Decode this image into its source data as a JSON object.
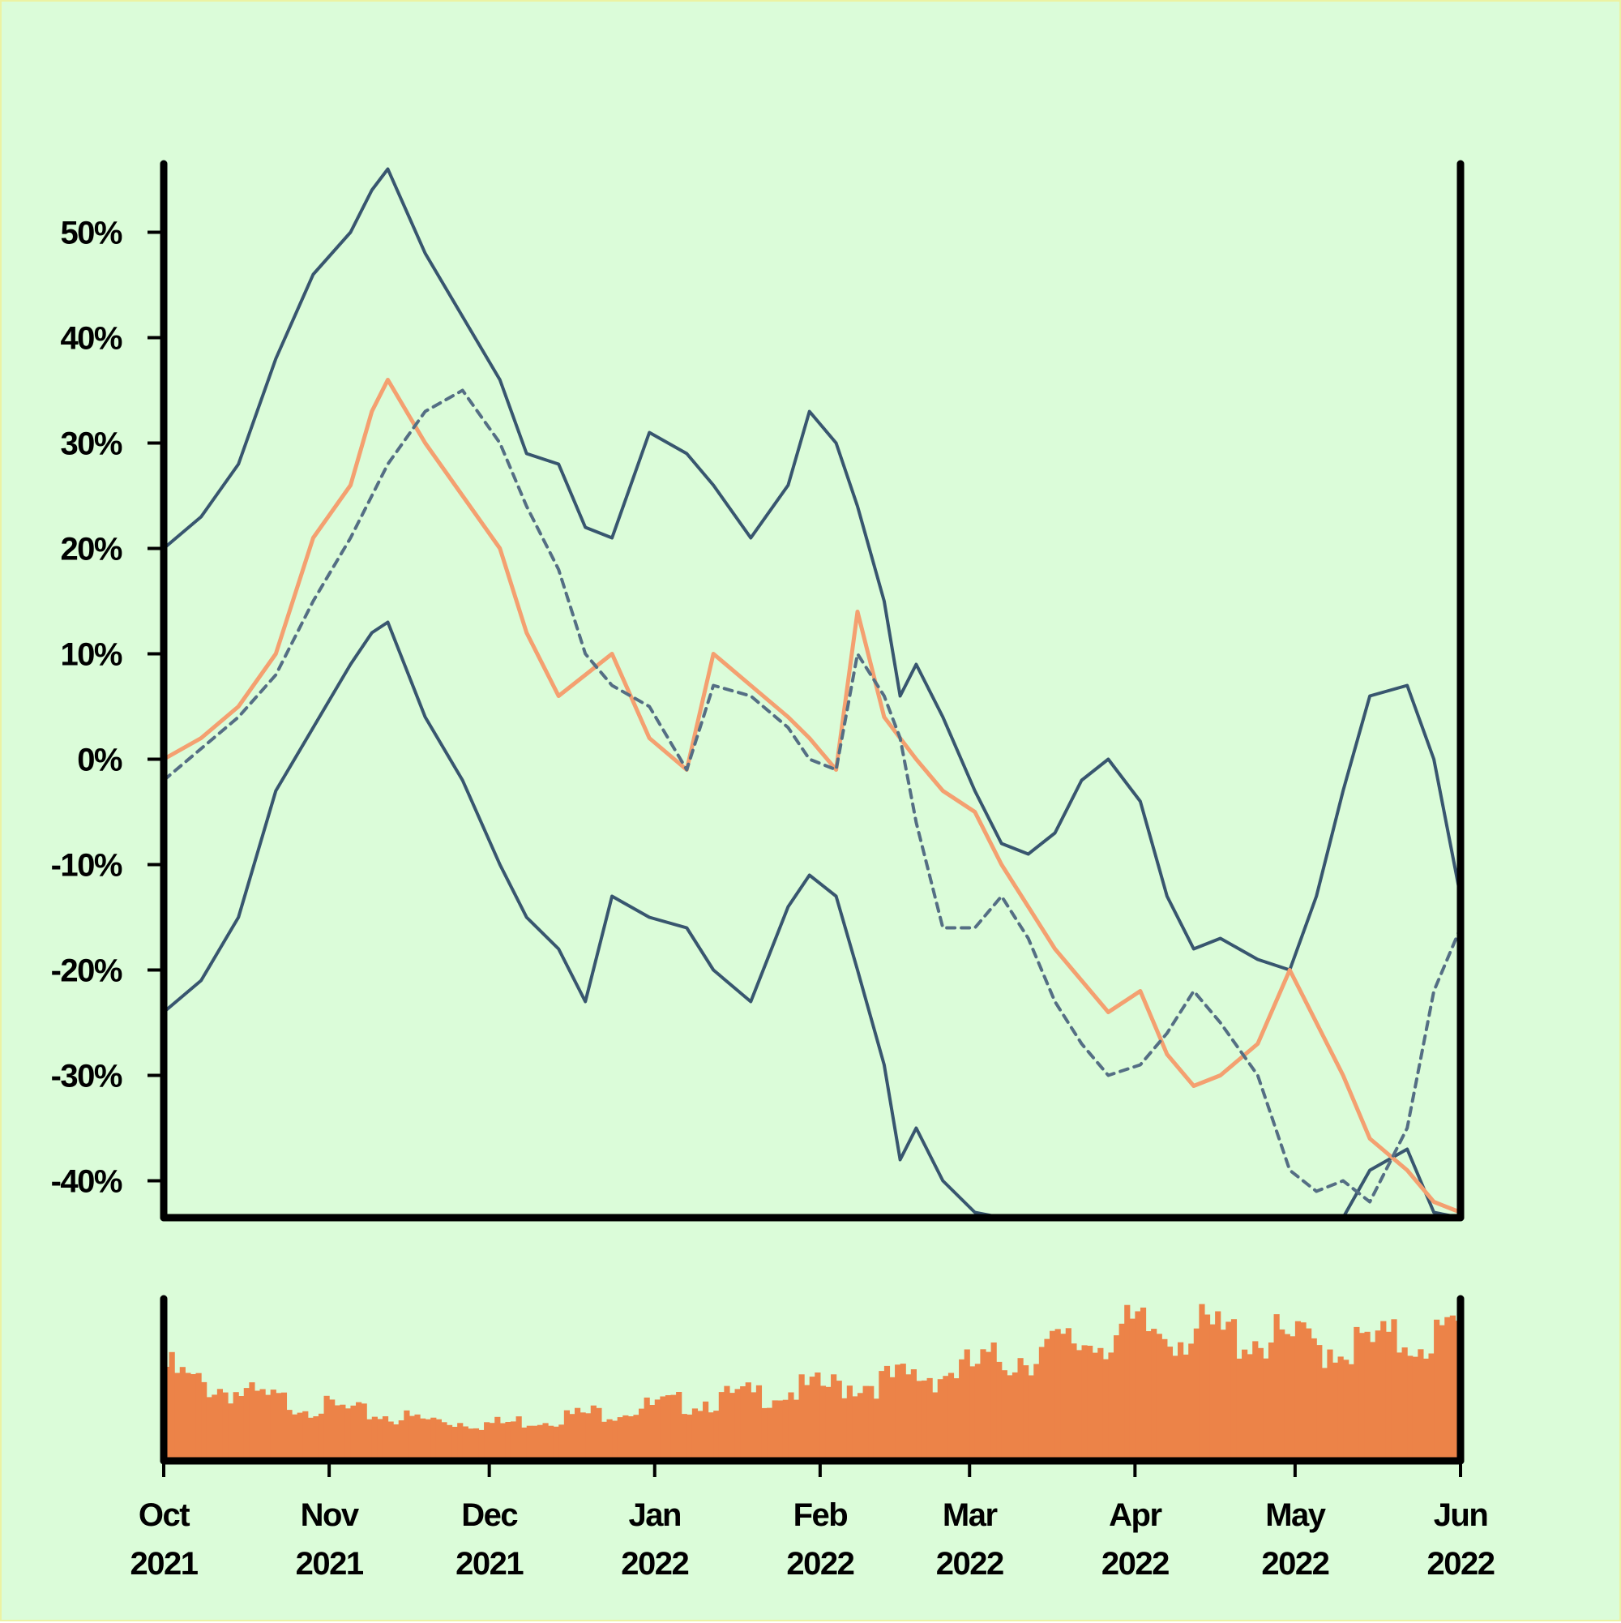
{
  "chart_data": [
    {
      "type": "line",
      "title": "",
      "xlabel": "",
      "ylabel": "",
      "xlim": [
        "2021-10-01",
        "2022-06-01"
      ],
      "ylim": [
        -43.5,
        56.5
      ],
      "y_unit": "%",
      "grid": false,
      "legend": "none",
      "x_ticks": [
        {
          "date": "2021-10-01",
          "month": "Oct",
          "year": "2021"
        },
        {
          "date": "2021-11-01",
          "month": "Nov",
          "year": "2021"
        },
        {
          "date": "2021-12-01",
          "month": "Dec",
          "year": "2021"
        },
        {
          "date": "2022-01-01",
          "month": "Jan",
          "year": "2022"
        },
        {
          "date": "2022-02-01",
          "month": "Feb",
          "year": "2022"
        },
        {
          "date": "2022-03-01",
          "month": "Mar",
          "year": "2022"
        },
        {
          "date": "2022-04-01",
          "month": "Apr",
          "year": "2022"
        },
        {
          "date": "2022-05-01",
          "month": "May",
          "year": "2022"
        },
        {
          "date": "2022-06-01",
          "month": "Jun",
          "year": "2022"
        }
      ],
      "y_ticks": [
        {
          "value": 50,
          "label": "50%"
        },
        {
          "value": 40,
          "label": "40%"
        },
        {
          "value": 30,
          "label": "30%"
        },
        {
          "value": 20,
          "label": "20%"
        },
        {
          "value": 10,
          "label": "10%"
        },
        {
          "value": 0,
          "label": "0%"
        },
        {
          "value": -10,
          "label": "-10%"
        },
        {
          "value": -20,
          "label": "-20%"
        },
        {
          "value": -30,
          "label": "-30%"
        },
        {
          "value": -40,
          "label": "-40%"
        }
      ],
      "x": [
        "2021-10-01",
        "2021-10-08",
        "2021-10-15",
        "2021-10-22",
        "2021-10-29",
        "2021-11-05",
        "2021-11-09",
        "2021-11-12",
        "2021-11-19",
        "2021-11-26",
        "2021-12-03",
        "2021-12-08",
        "2021-12-14",
        "2021-12-19",
        "2021-12-24",
        "2021-12-31",
        "2022-01-07",
        "2022-01-12",
        "2022-01-19",
        "2022-01-26",
        "2022-01-30",
        "2022-02-04",
        "2022-02-08",
        "2022-02-13",
        "2022-02-16",
        "2022-02-19",
        "2022-02-24",
        "2022-03-02",
        "2022-03-07",
        "2022-03-12",
        "2022-03-17",
        "2022-03-22",
        "2022-03-27",
        "2022-04-02",
        "2022-04-07",
        "2022-04-12",
        "2022-04-17",
        "2022-04-24",
        "2022-04-30",
        "2022-05-05",
        "2022-05-10",
        "2022-05-15",
        "2022-05-22",
        "2022-05-27",
        "2022-06-01"
      ],
      "series": [
        {
          "role": "price",
          "color": "#f4a070",
          "style": "solid",
          "values": [
            0,
            2,
            5,
            10,
            21,
            26,
            33,
            36,
            30,
            25,
            20,
            12,
            6,
            8,
            10,
            2,
            -1,
            10,
            7,
            4,
            2,
            -1,
            14,
            4,
            2,
            0,
            -3,
            -5,
            -10,
            -14,
            -18,
            -21,
            -24,
            -22,
            -28,
            -31,
            -30,
            -27,
            -20,
            -25,
            -30,
            -36,
            -39,
            -42,
            -43
          ]
        },
        {
          "role": "moving-average",
          "color": "#546e84",
          "style": "dashed",
          "values": [
            -2,
            1,
            4,
            8,
            15,
            21,
            25,
            28,
            33,
            35,
            30,
            24,
            18,
            10,
            7,
            5,
            -1,
            7,
            6,
            3,
            0,
            -1,
            10,
            6,
            2,
            -6,
            -16,
            -16,
            -13,
            -17,
            -23,
            -27,
            -30,
            -29,
            -26,
            -22,
            -25,
            -30,
            -39,
            -41,
            -40,
            -42,
            -35,
            -22,
            -16
          ]
        },
        {
          "role": "upper-band",
          "color": "#38566f",
          "style": "solid",
          "values": [
            20,
            23,
            28,
            38,
            46,
            50,
            54,
            56,
            48,
            42,
            36,
            29,
            28,
            22,
            21,
            31,
            29,
            26,
            21,
            26,
            33,
            30,
            24,
            15,
            6,
            9,
            4,
            -3,
            -8,
            -9,
            -7,
            -2,
            0,
            -4,
            -13,
            -18,
            -17,
            -19,
            -20,
            -13,
            -3,
            6,
            7,
            0,
            -13
          ]
        },
        {
          "role": "lower-band",
          "color": "#38566f",
          "style": "solid",
          "values": [
            -24,
            -21,
            -15,
            -3,
            3,
            9,
            12,
            13,
            4,
            -2,
            -10,
            -15,
            -18,
            -23,
            -13,
            -15,
            -16,
            -20,
            -23,
            -14,
            -11,
            -13,
            -20,
            -29,
            -38,
            -35,
            -40,
            -43,
            -43.5,
            -43.5,
            -43.5,
            -43.5,
            -43.5,
            -43.5,
            -43.5,
            -43.5,
            -43.5,
            -43.5,
            -43.5,
            -43.5,
            -43.5,
            -39,
            -37,
            -43,
            -43.5
          ]
        }
      ]
    },
    {
      "type": "bar",
      "role": "volume",
      "color": "#ec8348",
      "title": "",
      "ylabel": "",
      "x_range": [
        "2021-10-01",
        "2022-06-01"
      ],
      "ylim": [
        0,
        100
      ],
      "values": [
        58,
        52,
        48,
        46,
        44,
        42,
        40,
        38,
        37,
        35,
        34,
        33,
        32,
        30,
        29,
        28,
        27,
        26,
        25,
        25,
        24,
        24,
        23,
        23,
        24,
        25,
        26,
        27,
        28,
        29,
        30,
        31,
        32,
        33,
        34,
        35,
        36,
        37,
        38,
        39,
        40,
        41,
        42,
        43,
        44,
        45,
        46,
        47,
        48,
        49,
        50,
        51,
        52,
        53,
        55,
        57,
        59,
        61,
        63,
        65,
        67,
        69,
        71,
        73,
        75,
        77,
        79,
        80,
        80,
        80,
        80,
        80,
        79,
        78,
        77,
        76,
        75,
        74,
        73,
        72,
        71,
        70,
        71,
        72,
        73,
        74,
        75,
        76,
        77,
        78
      ]
    }
  ]
}
